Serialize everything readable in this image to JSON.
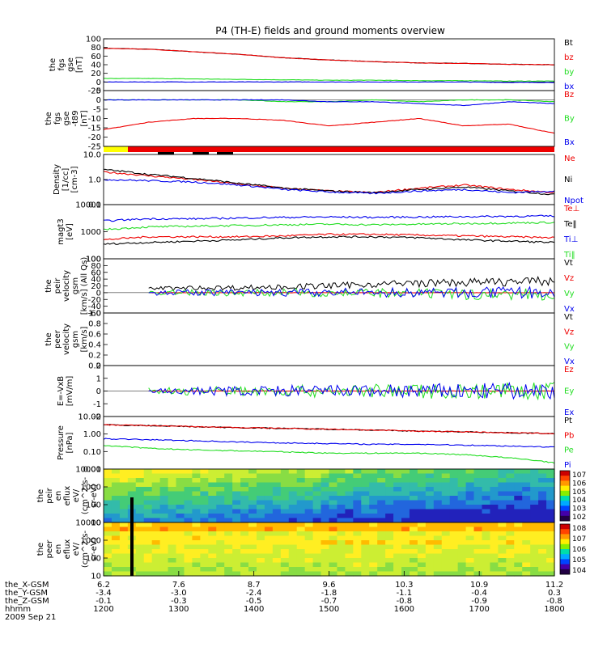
{
  "title": "P4 (TH-E) fields and ground moments overview",
  "colors": {
    "black": "#000000",
    "red": "#ee0000",
    "green": "#22dd22",
    "blue": "#0000ee",
    "yellow": "#ffff00"
  },
  "chart_data": {
    "type": "line",
    "x_axis": {
      "ticks": [
        "1200",
        "1300",
        "1400",
        "1500",
        "1600",
        "1700",
        "1800"
      ],
      "range": [
        1200,
        1800
      ],
      "rows": [
        {
          "label": "the_X-GSM",
          "values": [
            "6.2",
            "7.6",
            "8.7",
            "9.6",
            "10.3",
            "10.9",
            "11.2"
          ]
        },
        {
          "label": "the_Y-GSM",
          "values": [
            "-3.4",
            "-3.0",
            "-2.4",
            "-1.8",
            "-1.1",
            "-0.4",
            "0.3"
          ]
        },
        {
          "label": "the_Z-GSM",
          "values": [
            "-0.1",
            "-0.3",
            "-0.5",
            "-0.7",
            "-0.8",
            "-0.9",
            "-0.8"
          ]
        },
        {
          "label": "hhmm",
          "values": [
            "1200",
            "1300",
            "1400",
            "1500",
            "1600",
            "1700",
            "1800"
          ]
        }
      ],
      "date": "2009 Sep 21"
    },
    "panels": [
      {
        "id": "fgs-gse",
        "ylabel": [
          "the",
          "fgs",
          "gse",
          "[nT]"
        ],
        "ylim": [
          -20,
          100
        ],
        "yticks": [
          "100",
          "80",
          "60",
          "40",
          "20",
          "0",
          "-20"
        ],
        "series": [
          {
            "name": "Bt",
            "color": "black",
            "values": [
              78,
              76,
              70,
              64,
              56,
              51,
              47,
              44,
              43,
              41,
              40
            ]
          },
          {
            "name": "bz",
            "color": "red",
            "values": [
              78,
              76,
              70,
              64,
              56,
              51,
              47,
              44,
              43,
              41,
              40
            ]
          },
          {
            "name": "by",
            "color": "green",
            "values": [
              8,
              8,
              7,
              6,
              5,
              4,
              4,
              3,
              3,
              2,
              2
            ]
          },
          {
            "name": "bx",
            "color": "blue",
            "values": [
              0,
              0,
              0,
              0,
              0,
              0,
              0,
              0,
              0,
              -1,
              -1
            ]
          }
        ]
      },
      {
        "id": "fgs-gse-dBz",
        "ylabel": [
          "the",
          "fgs",
          "gse",
          "-t89",
          "[nT]"
        ],
        "ylim": [
          -25,
          5
        ],
        "yticks": [
          "5",
          "0",
          "-5",
          "-10",
          "-15",
          "-20",
          "-25"
        ],
        "series": [
          {
            "name": "Bz",
            "color": "red",
            "values": [
              -16,
              -12,
              -10,
              -10,
              -11,
              -14,
              -12,
              -10,
              -14,
              -13,
              -18
            ]
          },
          {
            "name": "By",
            "color": "green",
            "values": [
              0,
              0,
              0,
              0,
              -1,
              -1,
              0,
              -1,
              0,
              0,
              -1
            ]
          },
          {
            "name": "Bx",
            "color": "blue",
            "values": [
              0,
              0,
              0,
              0,
              0,
              -1,
              -1,
              -2,
              -3,
              -1,
              -2
            ]
          }
        ]
      },
      {
        "id": "density",
        "ylabel": [
          "Density",
          "[1/cc]",
          "[cm-3]"
        ],
        "ylim": [
          0.1,
          10
        ],
        "log": true,
        "yticks": [
          "10.0",
          "1.0",
          "0.1"
        ],
        "series": [
          {
            "name": "Ne",
            "color": "red",
            "values": [
              2.0,
              1.4,
              1.0,
              0.65,
              0.45,
              0.35,
              0.3,
              0.45,
              0.6,
              0.4,
              0.3
            ]
          },
          {
            "name": "Ni",
            "color": "black",
            "values": [
              2.5,
              1.6,
              1.1,
              0.7,
              0.45,
              0.35,
              0.3,
              0.4,
              0.5,
              0.35,
              0.25
            ]
          },
          {
            "name": "Npot",
            "color": "blue",
            "values": [
              1.0,
              0.9,
              0.8,
              0.6,
              0.4,
              0.32,
              0.28,
              0.35,
              0.4,
              0.3,
              0.35
            ]
          }
        ]
      },
      {
        "id": "temperature",
        "ylabel": [
          "magt3",
          "[eV]"
        ],
        "ylim": [
          100,
          10000
        ],
        "log": true,
        "yticks": [
          "10000",
          "1000",
          "100"
        ],
        "series": [
          {
            "name": "Te⊥",
            "color": "red",
            "values": [
              500,
              650,
              650,
              650,
              700,
              800,
              800,
              750,
              700,
              650,
              600
            ]
          },
          {
            "name": "Te‖",
            "color": "black",
            "values": [
              350,
              400,
              450,
              500,
              600,
              650,
              650,
              600,
              500,
              450,
              400
            ]
          },
          {
            "name": "Ti⊥",
            "color": "blue",
            "values": [
              2500,
              3000,
              3000,
              3200,
              3400,
              3500,
              3400,
              3500,
              3600,
              3700,
              3800
            ]
          },
          {
            "name": "Ti‖",
            "color": "green",
            "values": [
              1200,
              1500,
              1600,
              1700,
              1800,
              1900,
              1800,
              1900,
              2000,
              2100,
              2200
            ]
          }
        ]
      },
      {
        "id": "peir-velocity",
        "ylabel": [
          "the",
          "peir",
          "velocity",
          "gsm",
          "[km/s] (All Qs)"
        ],
        "ylim": [
          -60,
          100
        ],
        "yticks": [
          "100",
          "80",
          "60",
          "40",
          "20",
          "0",
          "-20",
          "-40",
          "-60"
        ],
        "series": [
          {
            "name": "Vt",
            "color": "black",
            "values": [
              null,
              12,
              14,
              15,
              17,
              20,
              25,
              28,
              30,
              32,
              34
            ]
          },
          {
            "name": "Vz",
            "color": "red",
            "values": [
              null,
              0,
              0,
              0,
              0,
              0,
              0,
              0,
              0,
              0,
              0
            ]
          },
          {
            "name": "Vy",
            "color": "green",
            "values": [
              null,
              0,
              0,
              0,
              0,
              0,
              -2,
              -4,
              -5,
              -5,
              -5
            ]
          },
          {
            "name": "Vx",
            "color": "blue",
            "values": [
              null,
              0,
              0,
              0,
              0,
              0,
              0,
              0,
              0,
              0,
              0
            ]
          }
        ]
      },
      {
        "id": "peer-velocity",
        "ylabel": [
          "the",
          "peer",
          "velocity",
          "gsm",
          "[km/s]"
        ],
        "ylim": [
          0,
          1
        ],
        "yticks": [
          "1.0",
          "0.8",
          "0.6",
          "0.4",
          "0.2",
          "0.0"
        ],
        "series": [
          {
            "name": "Vt",
            "color": "black",
            "values": []
          },
          {
            "name": "Vz",
            "color": "red",
            "values": []
          },
          {
            "name": "Vy",
            "color": "green",
            "values": []
          },
          {
            "name": "Vx",
            "color": "blue",
            "values": []
          }
        ]
      },
      {
        "id": "efield",
        "ylabel": [
          "E=-VxB",
          "[mV/m]"
        ],
        "ylim": [
          -2,
          2
        ],
        "yticks": [
          "2",
          "1",
          "0",
          "-1",
          "-2"
        ],
        "series": [
          {
            "name": "Ez",
            "color": "red",
            "values": [
              null,
              0,
              0,
              0,
              0,
              0,
              0,
              0,
              0,
              0,
              0
            ]
          },
          {
            "name": "Ey",
            "color": "green",
            "values": [
              null,
              0,
              0,
              0,
              0,
              0,
              0,
              0,
              0,
              0,
              0
            ]
          },
          {
            "name": "Ex",
            "color": "blue",
            "values": [
              null,
              0,
              0,
              0,
              0,
              0,
              0,
              0,
              0,
              0,
              0
            ]
          }
        ]
      },
      {
        "id": "pressure",
        "ylabel": [
          "Pressure",
          "[nPa]"
        ],
        "ylim": [
          0.005,
          10
        ],
        "log": true,
        "yticks": [
          "10.00",
          "1.00",
          "0.10",
          "0.01"
        ],
        "series": [
          {
            "name": "Pt",
            "color": "black",
            "values": [
              3.0,
              2.7,
              2.3,
              2.0,
              1.8,
              1.6,
              1.4,
              1.2,
              1.1,
              0.95,
              0.85
            ]
          },
          {
            "name": "Pb",
            "color": "red",
            "values": [
              3.0,
              2.7,
              2.3,
              2.0,
              1.8,
              1.6,
              1.4,
              1.2,
              1.1,
              0.95,
              0.85
            ]
          },
          {
            "name": "Pe",
            "color": "green",
            "values": [
              0.15,
              0.1,
              0.08,
              0.07,
              0.06,
              0.05,
              0.05,
              0.05,
              0.04,
              0.025,
              0.012
            ]
          },
          {
            "name": "Pi",
            "color": "blue",
            "values": [
              0.4,
              0.35,
              0.3,
              0.25,
              0.22,
              0.2,
              0.18,
              0.18,
              0.16,
              0.14,
              0.12
            ]
          }
        ]
      },
      {
        "id": "peir-spectrogram",
        "type": "heatmap",
        "ylabel": [
          "the",
          "peir",
          "en",
          "eflux",
          "eV/",
          "(cm^2-s-",
          "sr-eV)"
        ],
        "ylim": [
          5,
          20000
        ],
        "log": true,
        "yticks": [
          "10000",
          "1000",
          "100",
          "10"
        ],
        "colorbar": [
          "10^7",
          "10^6",
          "10^5",
          "10^4",
          "10^3",
          "10^2"
        ]
      },
      {
        "id": "peer-spectrogram",
        "type": "heatmap",
        "ylabel": [
          "the",
          "peer",
          "en",
          "eflux",
          "eV/",
          "(cm^2-s-",
          "sr-eV)"
        ],
        "ylim": [
          5,
          20000
        ],
        "log": true,
        "yticks": [
          "10000",
          "1000",
          "100",
          "10"
        ],
        "colorbar": [
          "10^8",
          "10^7",
          "10^6",
          "10^5",
          "10^4"
        ]
      }
    ]
  }
}
